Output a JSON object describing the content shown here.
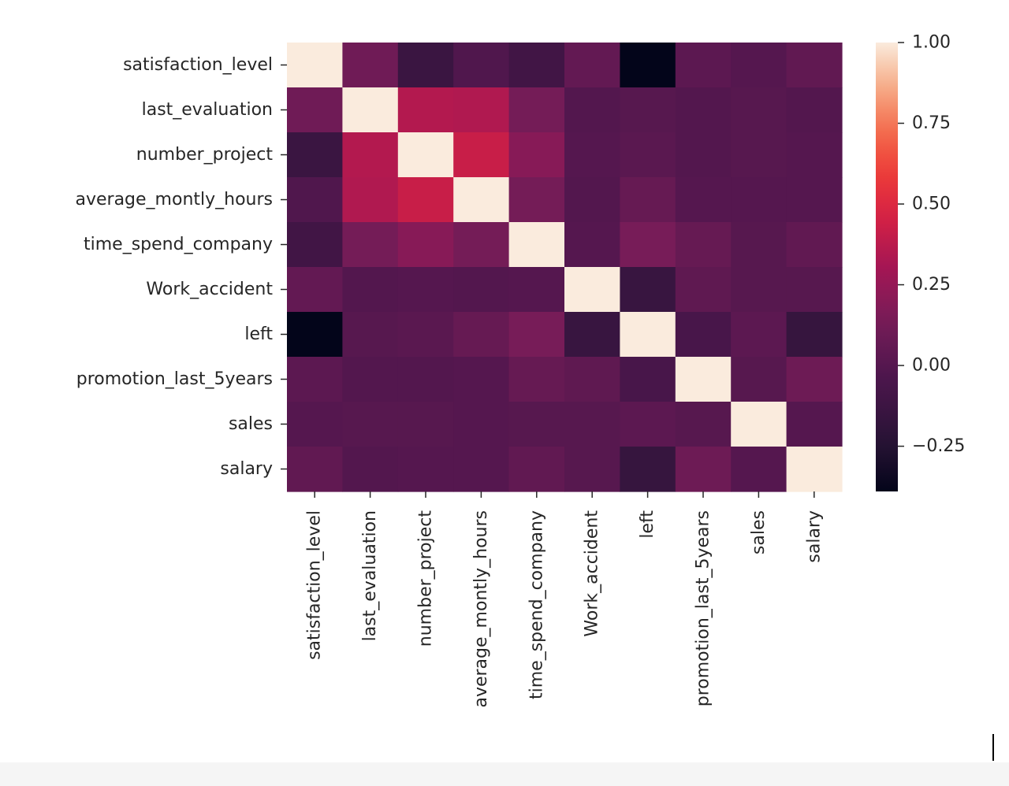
{
  "chart_data": {
    "type": "heatmap",
    "title": "",
    "xlabel": "",
    "ylabel": "",
    "row_labels": [
      "satisfaction_level",
      "last_evaluation",
      "number_project",
      "average_montly_hours",
      "time_spend_company",
      "Work_accident",
      "left",
      "promotion_last_5years",
      "sales",
      "salary"
    ],
    "col_labels": [
      "satisfaction_level",
      "last_evaluation",
      "number_project",
      "average_montly_hours",
      "time_spend_company",
      "Work_accident",
      "left",
      "promotion_last_5years",
      "sales",
      "salary"
    ],
    "values": [
      [
        1.0,
        0.11,
        -0.14,
        -0.02,
        -0.1,
        0.06,
        -0.39,
        0.03,
        0.0,
        0.05
      ],
      [
        0.11,
        1.0,
        0.35,
        0.34,
        0.13,
        -0.01,
        0.01,
        -0.01,
        0.01,
        -0.01
      ],
      [
        -0.14,
        0.35,
        1.0,
        0.42,
        0.2,
        -0.0,
        0.02,
        -0.01,
        0.01,
        -0.0
      ],
      [
        -0.02,
        0.34,
        0.42,
        1.0,
        0.13,
        -0.01,
        0.07,
        -0.0,
        0.0,
        -0.0
      ],
      [
        -0.1,
        0.13,
        0.2,
        0.13,
        1.0,
        0.0,
        0.14,
        0.07,
        0.01,
        0.05
      ],
      [
        0.06,
        -0.01,
        -0.0,
        -0.01,
        0.0,
        1.0,
        -0.15,
        0.04,
        0.01,
        0.01
      ],
      [
        -0.39,
        0.01,
        0.02,
        0.07,
        0.14,
        -0.15,
        1.0,
        -0.06,
        0.03,
        -0.16
      ],
      [
        0.03,
        -0.01,
        -0.01,
        -0.0,
        0.07,
        0.04,
        -0.06,
        1.0,
        0.01,
        0.1
      ],
      [
        0.0,
        0.01,
        0.01,
        0.0,
        0.01,
        0.01,
        0.03,
        0.01,
        1.0,
        0.0
      ],
      [
        0.05,
        -0.01,
        -0.0,
        -0.0,
        0.05,
        0.01,
        -0.16,
        0.1,
        0.0,
        1.0
      ]
    ],
    "colormap": "rocket",
    "colorbar": {
      "vmin": -0.39,
      "vmax": 1.0,
      "ticks": [
        1.0,
        0.75,
        0.5,
        0.25,
        0.0,
        -0.25
      ],
      "tick_labels": [
        "1.00",
        "0.75",
        "0.50",
        "0.25",
        "0.00",
        "−0.25"
      ]
    }
  }
}
